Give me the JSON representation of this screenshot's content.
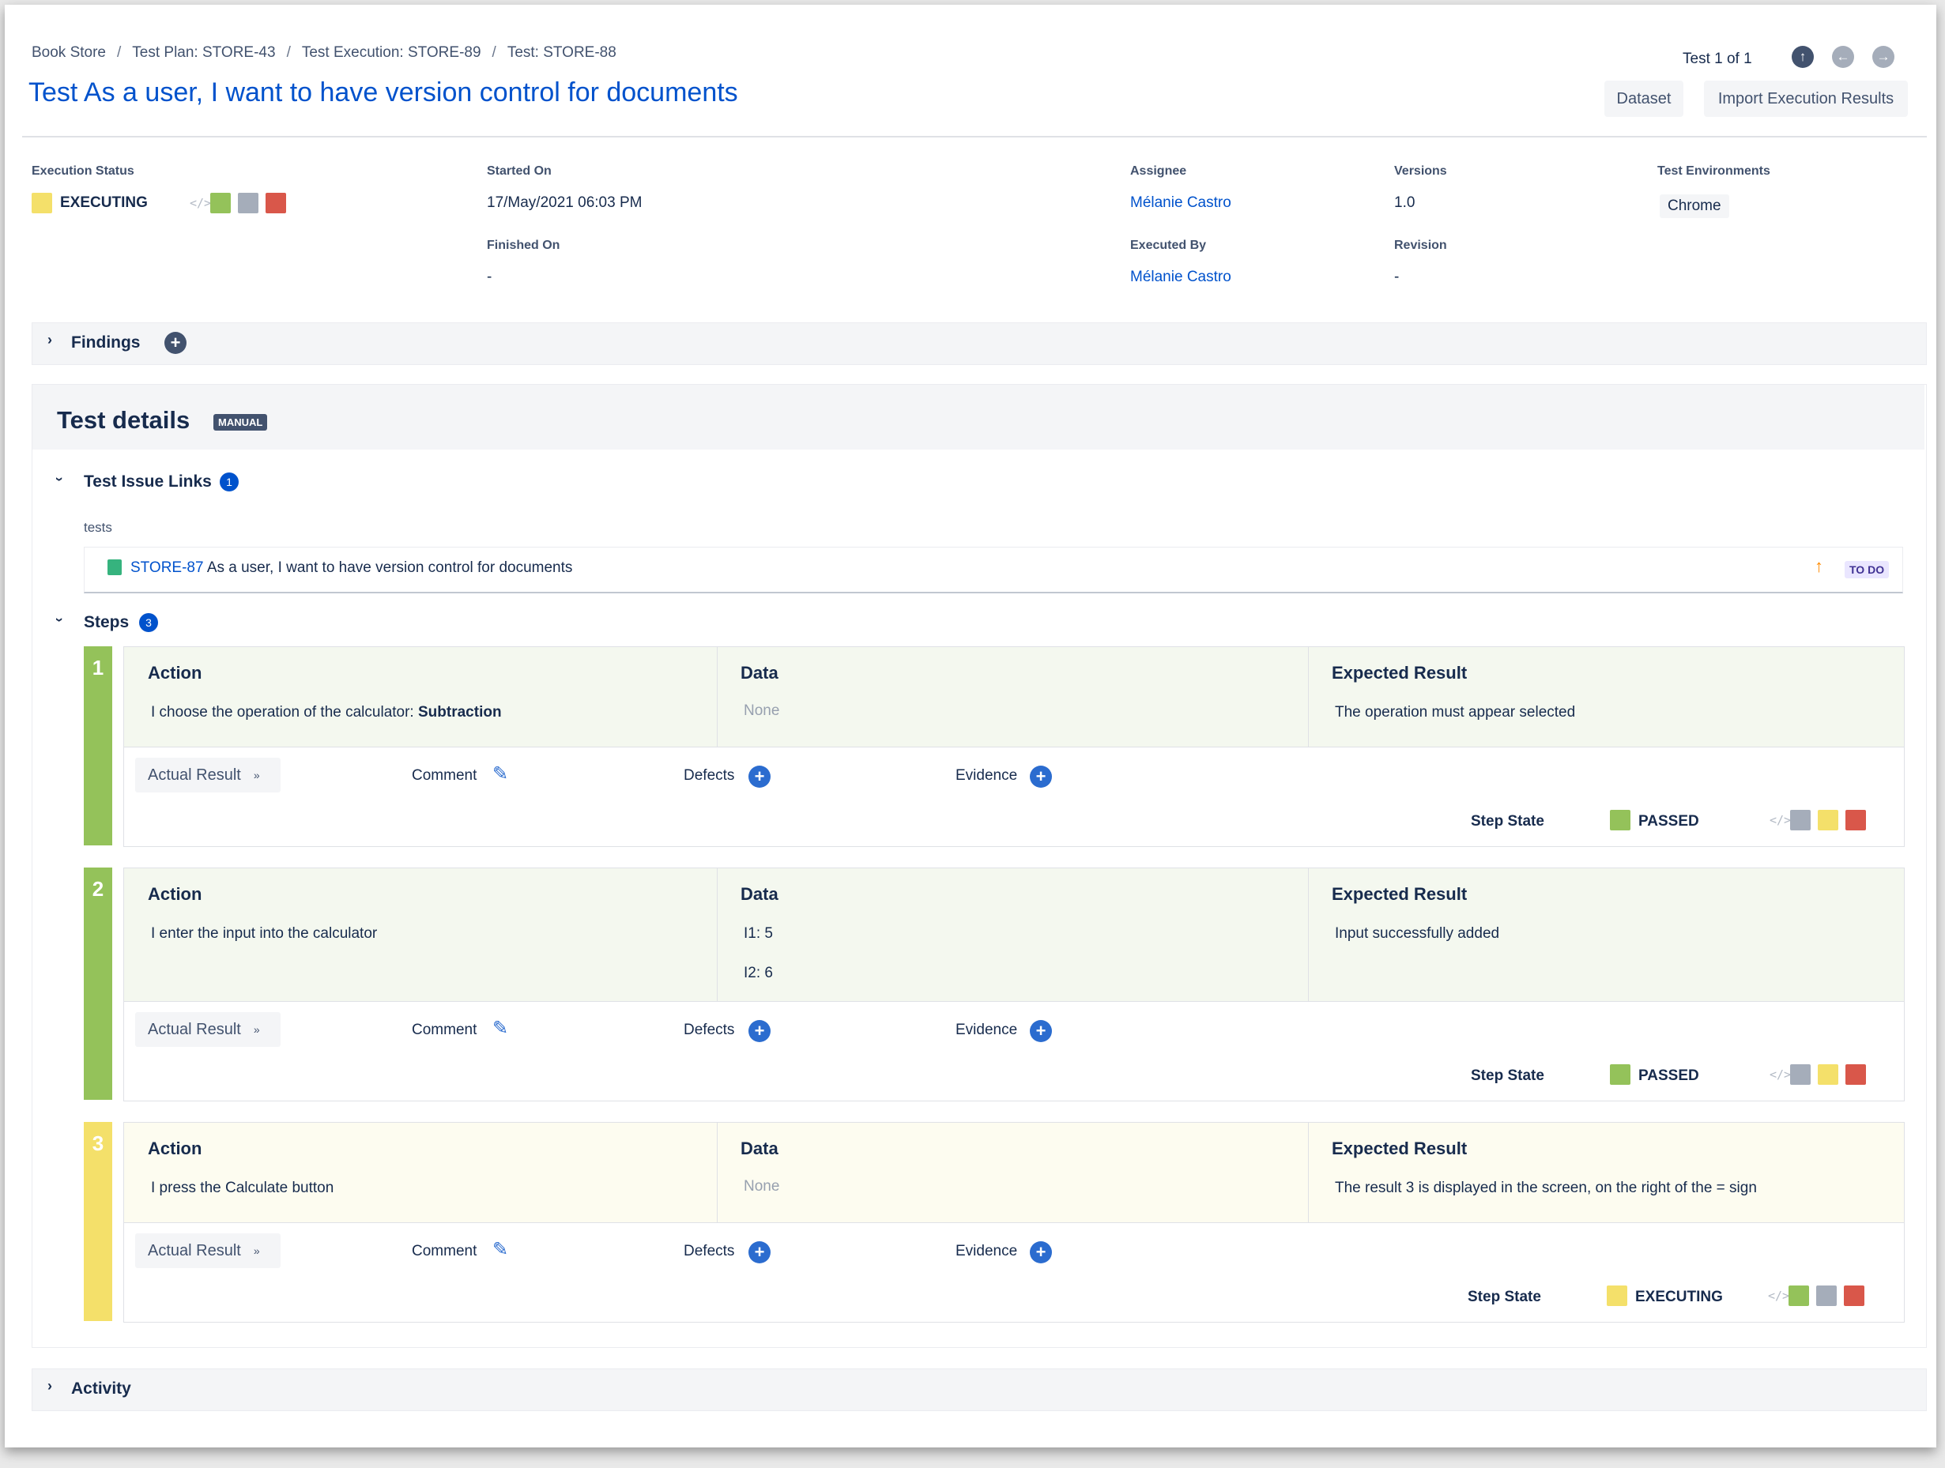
{
  "breadcrumb": [
    "Book Store",
    "Test Plan: STORE-43",
    "Test Execution: STORE-89",
    "Test: STORE-88"
  ],
  "title": "Test As a user, I want to have version control for documents",
  "nav": {
    "counter": "Test 1 of 1",
    "icons": [
      "arrow-up-icon",
      "arrow-left-icon",
      "arrow-right-icon"
    ]
  },
  "buttons": {
    "dataset": "Dataset",
    "import": "Import Execution Results"
  },
  "meta": {
    "execution_status_label": "Execution Status",
    "execution_status_value": "EXECUTING",
    "started_on_label": "Started On",
    "started_on_value": "17/May/2021 06:03 PM",
    "finished_on_label": "Finished On",
    "finished_on_value": "-",
    "assignee_label": "Assignee",
    "assignee_value": "Mélanie Castro",
    "executed_by_label": "Executed By",
    "executed_by_value": "Mélanie Castro",
    "versions_label": "Versions",
    "versions_value": "1.0",
    "revision_label": "Revision",
    "revision_value": "-",
    "test_env_label": "Test Environments",
    "test_env_value": "Chrome"
  },
  "colors": {
    "passed": "#94c25a",
    "executing": "#f4e06a",
    "todo": "#a5adba",
    "failed": "#d9574a",
    "link": "#0052cc"
  },
  "findings": {
    "title": "Findings"
  },
  "test_details": {
    "title": "Test details",
    "badge": "MANUAL",
    "issue_links": {
      "title": "Test Issue Links",
      "count": "1",
      "relation": "tests",
      "issue_key": "STORE-87",
      "issue_summary": "As a user, I want to have version control for documents",
      "issue_status": "TO DO"
    },
    "steps_title": "Steps",
    "steps_count": "3",
    "steps": [
      {
        "number": "1",
        "action_label": "Action",
        "action_text": "I choose the operation of the calculator: ",
        "action_bold": "Subtraction",
        "data_label": "Data",
        "data_lines": [
          "None"
        ],
        "expected_label": "Expected Result",
        "expected_text": "The operation must appear selected",
        "actual_result": "Actual Result",
        "comment": "Comment",
        "defects": "Defects",
        "evidence": "Evidence",
        "step_state_label": "Step State",
        "step_state": "PASSED"
      },
      {
        "number": "2",
        "action_label": "Action",
        "action_text": "I enter the input into the calculator",
        "action_bold": "",
        "data_label": "Data",
        "data_lines": [
          "I1: 5",
          "I2: 6"
        ],
        "expected_label": "Expected Result",
        "expected_text": "Input successfully added",
        "actual_result": "Actual Result",
        "comment": "Comment",
        "defects": "Defects",
        "evidence": "Evidence",
        "step_state_label": "Step State",
        "step_state": "PASSED"
      },
      {
        "number": "3",
        "action_label": "Action",
        "action_text": "I press the Calculate button",
        "action_bold": "",
        "data_label": "Data",
        "data_lines": [
          "None"
        ],
        "expected_label": "Expected Result",
        "expected_text": "The result 3 is displayed in the screen, on the right of the = sign",
        "actual_result": "Actual Result",
        "comment": "Comment",
        "defects": "Defects",
        "evidence": "Evidence",
        "step_state_label": "Step State",
        "step_state": "EXECUTING"
      }
    ]
  },
  "activity": {
    "title": "Activity"
  }
}
